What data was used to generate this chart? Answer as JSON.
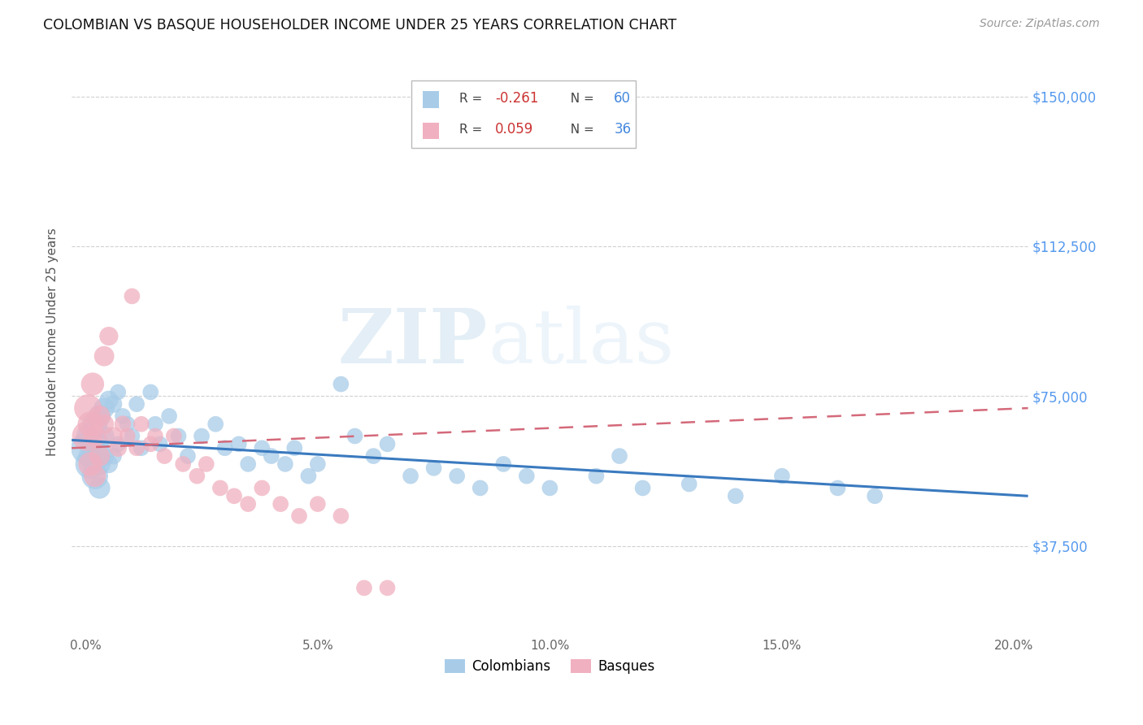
{
  "title": "COLOMBIAN VS BASQUE HOUSEHOLDER INCOME UNDER 25 YEARS CORRELATION CHART",
  "source": "Source: ZipAtlas.com",
  "ylabel": "Householder Income Under 25 years",
  "xlabel_ticks": [
    "0.0%",
    "5.0%",
    "10.0%",
    "15.0%",
    "20.0%"
  ],
  "xlabel_vals": [
    0.0,
    0.05,
    0.1,
    0.15,
    0.2
  ],
  "ytick_labels": [
    "$37,500",
    "$75,000",
    "$112,500",
    "$150,000"
  ],
  "ytick_vals": [
    37500,
    75000,
    112500,
    150000
  ],
  "ylim": [
    15000,
    162000
  ],
  "xlim": [
    -0.003,
    0.203
  ],
  "colombian_color": "#a8cce8",
  "basque_color": "#f0b0c0",
  "colombian_line_color": "#3a7abf",
  "basque_line_color": "#d4697a",
  "R_colombian": -0.261,
  "N_colombian": 60,
  "R_basque": 0.059,
  "N_basque": 36,
  "colombian_x": [
    0.0005,
    0.001,
    0.001,
    0.0015,
    0.002,
    0.002,
    0.0025,
    0.003,
    0.003,
    0.003,
    0.004,
    0.004,
    0.004,
    0.005,
    0.005,
    0.006,
    0.006,
    0.007,
    0.007,
    0.008,
    0.009,
    0.01,
    0.011,
    0.012,
    0.014,
    0.015,
    0.016,
    0.018,
    0.02,
    0.022,
    0.025,
    0.028,
    0.03,
    0.033,
    0.035,
    0.038,
    0.04,
    0.043,
    0.045,
    0.048,
    0.05,
    0.055,
    0.058,
    0.062,
    0.065,
    0.07,
    0.075,
    0.08,
    0.085,
    0.09,
    0.095,
    0.1,
    0.11,
    0.115,
    0.12,
    0.13,
    0.14,
    0.15,
    0.162,
    0.17
  ],
  "colombian_y": [
    62000,
    58000,
    65000,
    60000,
    55000,
    68000,
    63000,
    70000,
    58000,
    52000,
    72000,
    65000,
    60000,
    74000,
    58000,
    73000,
    60000,
    76000,
    63000,
    70000,
    68000,
    65000,
    73000,
    62000,
    76000,
    68000,
    63000,
    70000,
    65000,
    60000,
    65000,
    68000,
    62000,
    63000,
    58000,
    62000,
    60000,
    58000,
    62000,
    55000,
    58000,
    78000,
    65000,
    60000,
    63000,
    55000,
    57000,
    55000,
    52000,
    58000,
    55000,
    52000,
    55000,
    60000,
    52000,
    53000,
    50000,
    55000,
    52000,
    50000
  ],
  "basque_x": [
    0.0003,
    0.0005,
    0.001,
    0.001,
    0.0015,
    0.002,
    0.002,
    0.003,
    0.003,
    0.004,
    0.004,
    0.005,
    0.006,
    0.007,
    0.008,
    0.009,
    0.01,
    0.011,
    0.012,
    0.014,
    0.015,
    0.017,
    0.019,
    0.021,
    0.024,
    0.026,
    0.029,
    0.032,
    0.035,
    0.038,
    0.042,
    0.046,
    0.05,
    0.055,
    0.06,
    0.065
  ],
  "basque_y": [
    65000,
    72000,
    68000,
    58000,
    78000,
    65000,
    55000,
    70000,
    60000,
    85000,
    68000,
    90000,
    65000,
    62000,
    68000,
    65000,
    100000,
    62000,
    68000,
    63000,
    65000,
    60000,
    65000,
    58000,
    55000,
    58000,
    52000,
    50000,
    48000,
    52000,
    48000,
    45000,
    48000,
    45000,
    27000,
    27000
  ],
  "colombian_sizes": [
    900,
    700,
    600,
    600,
    550,
    500,
    450,
    400,
    380,
    360,
    340,
    320,
    300,
    280,
    260,
    240,
    220,
    200,
    200,
    200,
    200,
    200,
    200,
    200,
    200,
    200,
    200,
    200,
    200,
    200,
    200,
    200,
    200,
    200,
    200,
    200,
    200,
    200,
    200,
    200,
    200,
    200,
    200,
    200,
    200,
    200,
    200,
    200,
    200,
    200,
    200,
    200,
    200,
    200,
    200,
    200,
    200,
    200,
    200,
    200
  ],
  "basque_sizes": [
    700,
    600,
    500,
    450,
    420,
    400,
    380,
    360,
    340,
    320,
    300,
    280,
    260,
    240,
    220,
    200,
    200,
    200,
    200,
    200,
    200,
    200,
    200,
    200,
    200,
    200,
    200,
    200,
    200,
    200,
    200,
    200,
    200,
    200,
    200,
    200
  ],
  "watermark_zip": "ZIP",
  "watermark_atlas": "atlas",
  "background_color": "#ffffff",
  "grid_color": "#cccccc",
  "legend_R_col": "-0.261",
  "legend_N_col": "60",
  "legend_R_bas": "0.059",
  "legend_N_bas": "36"
}
